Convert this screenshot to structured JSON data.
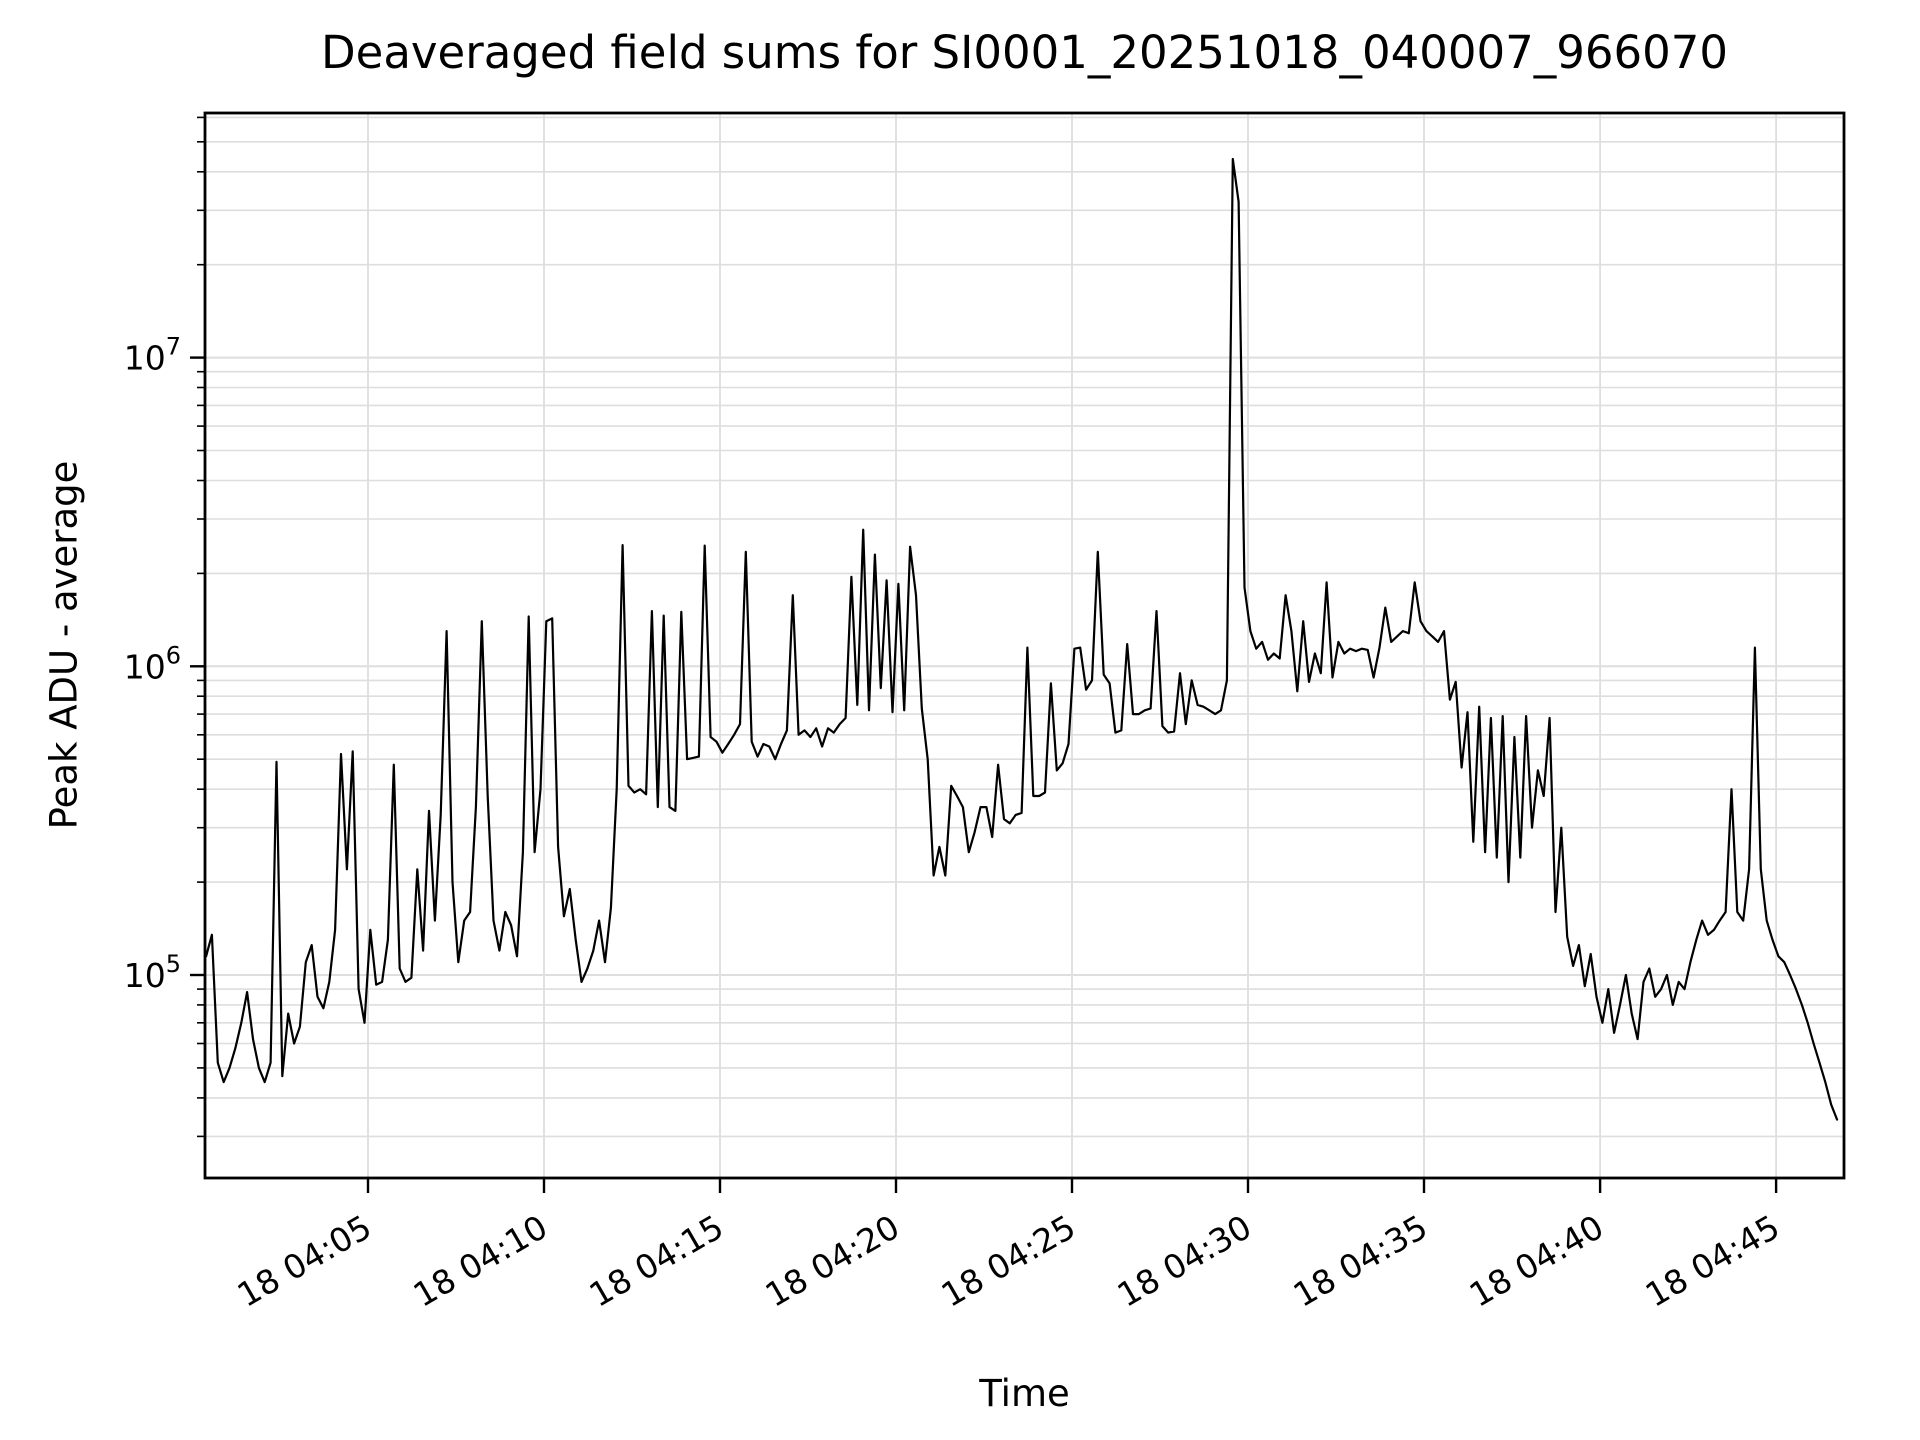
{
  "chart_data": {
    "type": "line",
    "title": "Deaveraged field sums for SI0001_20251018_040007_966070",
    "xlabel": "Time",
    "ylabel": "Peak ADU - average",
    "legend": null,
    "grid": true,
    "line_color": "#000000",
    "grid_color": "#dedede",
    "background_color": "#ffffff",
    "x_axis": {
      "tick_labels": [
        "18 04:05",
        "18 04:10",
        "18 04:15",
        "18 04:20",
        "18 04:25",
        "18 04:30",
        "18 04:35",
        "18 04:40",
        "18 04:45"
      ],
      "tick_minutes_after_0400": [
        5,
        10,
        15,
        20,
        25,
        30,
        35,
        40,
        45
      ],
      "xlim_minutes_after_0400": [
        0.37,
        46.93
      ],
      "label_rotation_deg": 30
    },
    "y_axis": {
      "scale": "log",
      "major_tick_exponents": [
        5,
        6,
        7
      ],
      "major_tick_base": "10",
      "ylim": [
        22000,
        62000000
      ]
    },
    "series": [
      {
        "name": "peak-adu-minus-average",
        "t_start_min": 0.4,
        "t_step_min": 0.1666667,
        "values": [
          115000,
          135000,
          52000,
          45000,
          50000,
          58000,
          70000,
          88000,
          62000,
          50000,
          45000,
          52000,
          490000,
          47000,
          75000,
          60000,
          68000,
          110000,
          125000,
          85000,
          78000,
          95000,
          140000,
          520000,
          220000,
          530000,
          90000,
          70000,
          140000,
          93000,
          95000,
          130000,
          480000,
          105000,
          95000,
          98000,
          220000,
          120000,
          340000,
          150000,
          330000,
          1300000,
          200000,
          110000,
          150000,
          160000,
          350000,
          1400000,
          380000,
          150000,
          120000,
          160000,
          145000,
          115000,
          250000,
          1450000,
          250000,
          400000,
          1400000,
          1430000,
          260000,
          155000,
          190000,
          130000,
          95000,
          105000,
          120000,
          150000,
          110000,
          165000,
          400000,
          2470000,
          410000,
          390000,
          400000,
          385000,
          1510000,
          350000,
          1460000,
          350000,
          340000,
          1500000,
          500000,
          505000,
          510000,
          2460000,
          590000,
          570000,
          525000,
          560000,
          600000,
          650000,
          2350000,
          570000,
          510000,
          560000,
          550000,
          500000,
          560000,
          620000,
          1700000,
          600000,
          620000,
          590000,
          630000,
          550000,
          630000,
          610000,
          650000,
          680000,
          1950000,
          750000,
          2770000,
          720000,
          2300000,
          850000,
          1900000,
          710000,
          1850000,
          720000,
          2440000,
          1700000,
          730000,
          500000,
          210000,
          260000,
          210000,
          410000,
          380000,
          350000,
          250000,
          290000,
          350000,
          350000,
          280000,
          480000,
          320000,
          310000,
          330000,
          335000,
          1150000,
          380000,
          380000,
          390000,
          880000,
          460000,
          485000,
          560000,
          1140000,
          1150000,
          840000,
          900000,
          2350000,
          940000,
          880000,
          610000,
          620000,
          1180000,
          700000,
          700000,
          720000,
          730000,
          1510000,
          640000,
          610000,
          615000,
          950000,
          650000,
          900000,
          750000,
          740000,
          720000,
          700000,
          720000,
          900000,
          44000000,
          32000000,
          1800000,
          1300000,
          1140000,
          1200000,
          1050000,
          1100000,
          1060000,
          1700000,
          1300000,
          830000,
          1400000,
          890000,
          1100000,
          950000,
          1870000,
          920000,
          1200000,
          1100000,
          1140000,
          1120000,
          1140000,
          1130000,
          920000,
          1150000,
          1550000,
          1200000,
          1250000,
          1300000,
          1280000,
          1870000,
          1400000,
          1300000,
          1250000,
          1200000,
          1300000,
          780000,
          890000,
          470000,
          710000,
          270000,
          740000,
          250000,
          680000,
          240000,
          690000,
          200000,
          590000,
          240000,
          690000,
          300000,
          460000,
          380000,
          680000,
          160000,
          300000,
          133000,
          107000,
          125000,
          92000,
          117000,
          85000,
          70000,
          90000,
          65000,
          80000,
          100000,
          75000,
          62000,
          95000,
          105000,
          85000,
          90000,
          100000,
          80000,
          95000,
          90000,
          110000,
          130000,
          150000,
          135000,
          140000,
          150000,
          160000,
          400000,
          160000,
          150000,
          220000,
          1150000,
          220000,
          150000,
          130000,
          115000,
          110000,
          100000,
          90000,
          80000,
          70000,
          60000,
          52000,
          45000,
          38000,
          34000
        ]
      }
    ]
  }
}
